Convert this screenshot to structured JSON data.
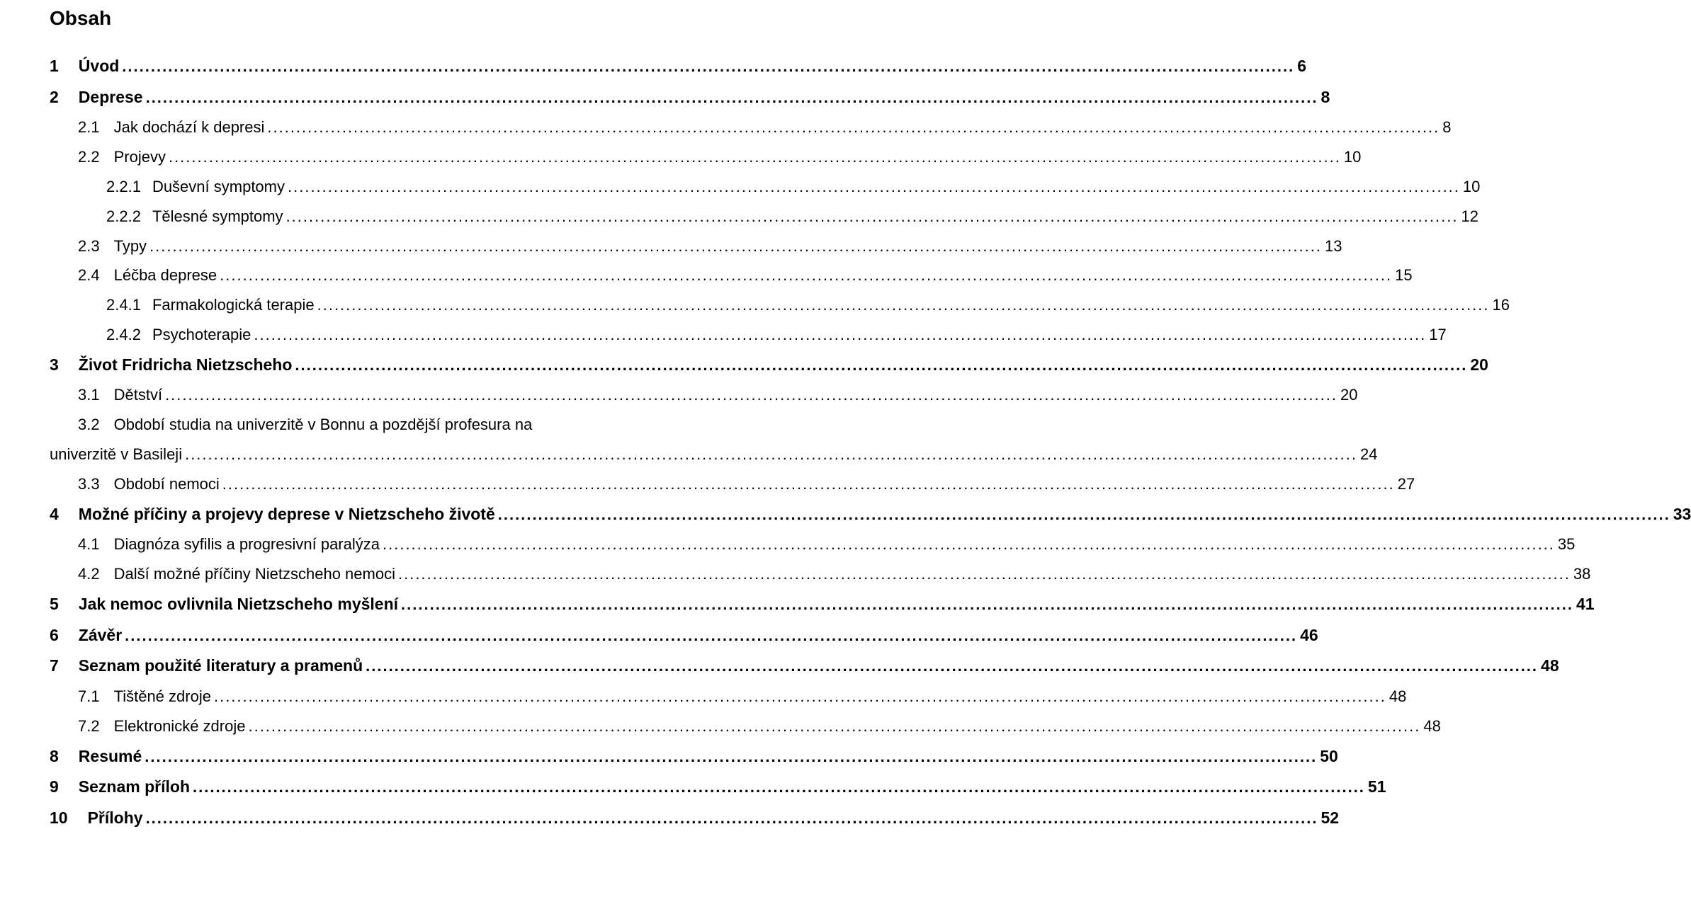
{
  "title": "Obsah",
  "entries": [
    {
      "level": 1,
      "num": "1",
      "label": "Úvod",
      "page": "6"
    },
    {
      "level": 1,
      "num": "2",
      "label": "Deprese",
      "page": "8"
    },
    {
      "level": 2,
      "num": "2.1",
      "label": "Jak dochází k depresi",
      "page": "8"
    },
    {
      "level": 2,
      "num": "2.2",
      "label": "Projevy",
      "page": "10"
    },
    {
      "level": 3,
      "num": "2.2.1",
      "label": "Duševní symptomy",
      "page": "10"
    },
    {
      "level": 3,
      "num": "2.2.2",
      "label": "Tělesné symptomy",
      "page": "12"
    },
    {
      "level": 2,
      "num": "2.3",
      "label": "Typy",
      "page": "13"
    },
    {
      "level": 2,
      "num": "2.4",
      "label": "Léčba deprese",
      "page": "15"
    },
    {
      "level": 3,
      "num": "2.4.1",
      "label": "Farmakologická terapie",
      "page": "16"
    },
    {
      "level": 3,
      "num": "2.4.2",
      "label": "Psychoterapie",
      "page": "17"
    },
    {
      "level": 1,
      "num": "3",
      "label": "Život Fridricha Nietzscheho",
      "page": "20"
    },
    {
      "level": 2,
      "num": "3.1",
      "label": "Dětství",
      "page": "20"
    },
    {
      "level": 2,
      "num": "3.2",
      "label": "Období studia na univerzitě v Bonnu a pozdější profesura na",
      "cont": "univerzitě v Basileji",
      "page": "24"
    },
    {
      "level": 2,
      "num": "3.3",
      "label": "Období nemoci",
      "page": "27"
    },
    {
      "level": 1,
      "num": "4",
      "label": "Možné příčiny a projevy deprese v Nietzscheho životě",
      "page": "33"
    },
    {
      "level": 2,
      "num": "4.1",
      "label": "Diagnóza syfilis a progresivní paralýza",
      "page": "35"
    },
    {
      "level": 2,
      "num": "4.2",
      "label": "Další možné příčiny Nietzscheho nemoci",
      "page": "38"
    },
    {
      "level": 1,
      "num": "5",
      "label": "Jak nemoc ovlivnila Nietzscheho myšlení",
      "page": "41"
    },
    {
      "level": 1,
      "num": "6",
      "label": "Závěr",
      "page": "46"
    },
    {
      "level": 1,
      "num": "7",
      "label": "Seznam použité literatury a pramenů",
      "page": "48"
    },
    {
      "level": 2,
      "num": "7.1",
      "label": "Tištěné zdroje",
      "page": "48"
    },
    {
      "level": 2,
      "num": "7.2",
      "label": "Elektronické zdroje",
      "page": "48"
    },
    {
      "level": 1,
      "num": "8",
      "label": "Resumé",
      "page": "50"
    },
    {
      "level": 1,
      "num": "9",
      "label": "Seznam příloh",
      "page": "51"
    },
    {
      "level": 1,
      "num": "10",
      "label": "Přílohy",
      "page": "52"
    }
  ]
}
